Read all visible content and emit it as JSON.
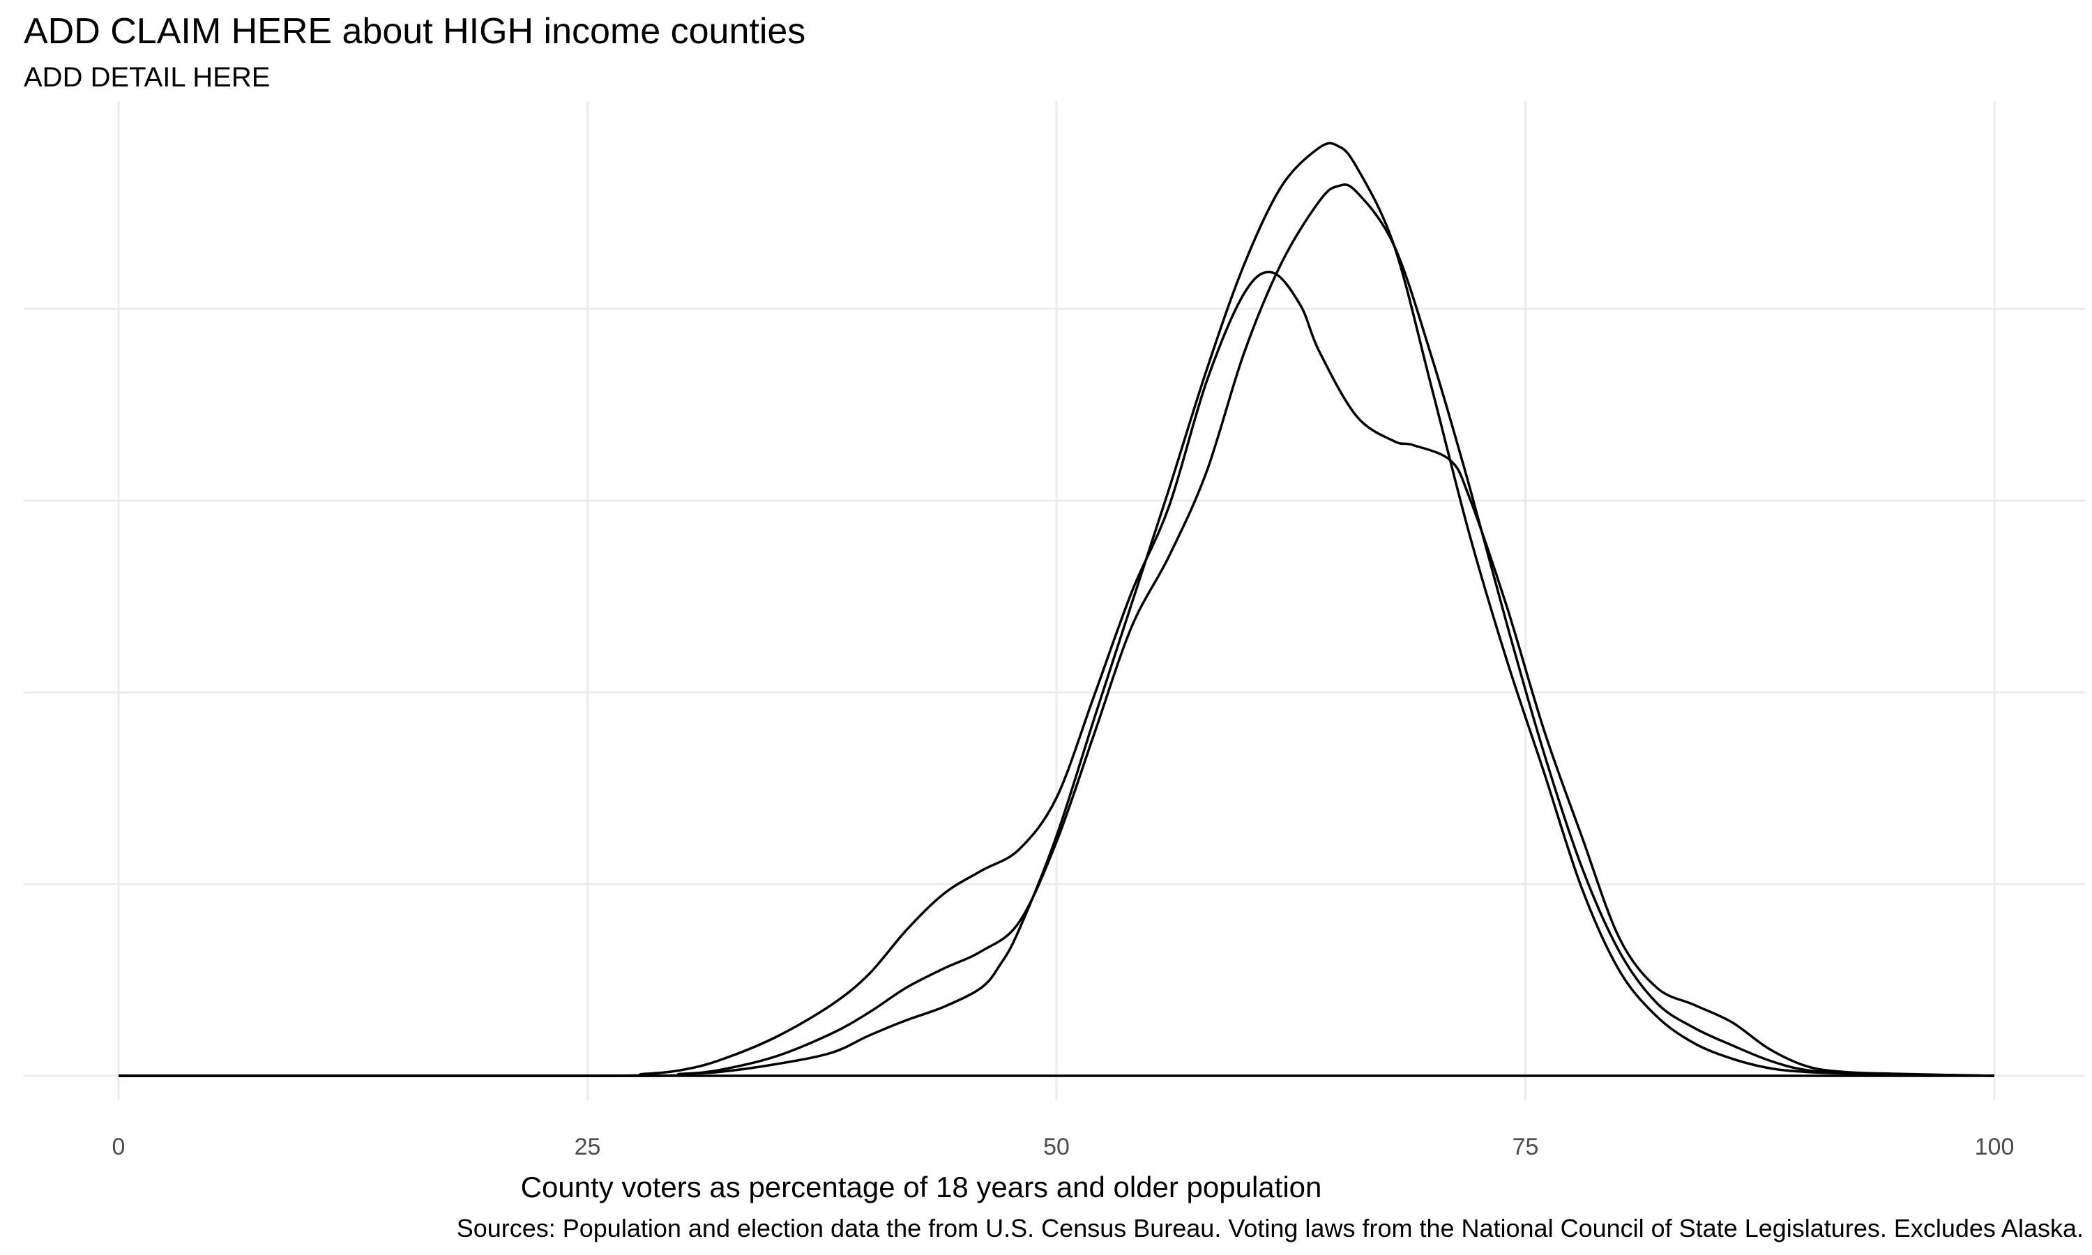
{
  "chart_data": {
    "type": "line",
    "title": "ADD CLAIM HERE about HIGH income counties",
    "subtitle": "ADD DETAIL HERE",
    "xlabel": "County voters as percentage of 18 years and older population",
    "ylabel": "",
    "caption": "Sources: Population and election data the from U.S. Census Bureau. Voting laws from the National Council of State Legislatures. Excludes Alaska.",
    "xlim": [
      0,
      100
    ],
    "ylim": [
      0,
      0.0485
    ],
    "x_ticks": [
      0,
      25,
      50,
      75,
      100
    ],
    "x_tick_labels": [
      "0",
      "25",
      "50",
      "75",
      "100"
    ],
    "y_gridlines": [
      0,
      0.01,
      0.02,
      0.03,
      0.04
    ],
    "y_tick_labels_visible": false,
    "grid": true,
    "legend": "none",
    "line_color": "#000000",
    "grid_color": "#ebebeb",
    "series": [
      {
        "x": [
          0,
          25,
          28,
          30,
          32,
          35,
          38,
          40,
          42,
          44,
          46,
          48,
          50,
          52,
          54,
          56,
          58,
          60,
          61.5,
          63,
          64,
          66,
          68,
          69,
          71,
          72,
          74,
          76,
          78,
          80,
          82,
          84,
          86,
          88,
          90,
          92,
          95,
          100
        ],
        "y": [
          0,
          0,
          0.0001,
          0.0003,
          0.0008,
          0.002,
          0.0037,
          0.0053,
          0.0076,
          0.0095,
          0.0107,
          0.0118,
          0.0145,
          0.0198,
          0.0252,
          0.0297,
          0.0362,
          0.0408,
          0.0419,
          0.0402,
          0.0378,
          0.0344,
          0.0331,
          0.0329,
          0.0321,
          0.0302,
          0.0245,
          0.018,
          0.0125,
          0.0072,
          0.0046,
          0.0037,
          0.0028,
          0.0014,
          0.0005,
          0.0002,
          0.0001,
          0
        ]
      },
      {
        "x": [
          0,
          27,
          30,
          32,
          35,
          38,
          40,
          42,
          44,
          46,
          48,
          50,
          52,
          54,
          56,
          58,
          60,
          62,
          64,
          65,
          66,
          68,
          70,
          72,
          74,
          76,
          78,
          80,
          82,
          84,
          86,
          88,
          90,
          93,
          100
        ],
        "y": [
          0,
          0,
          0.0001,
          0.0003,
          0.001,
          0.0022,
          0.0033,
          0.0046,
          0.0056,
          0.0065,
          0.008,
          0.0122,
          0.0178,
          0.0234,
          0.0271,
          0.0315,
          0.0377,
          0.0424,
          0.0456,
          0.0464,
          0.0461,
          0.0433,
          0.0375,
          0.0308,
          0.0236,
          0.0168,
          0.0109,
          0.0065,
          0.0038,
          0.0025,
          0.0016,
          0.0008,
          0.0003,
          0.0001,
          0
        ]
      },
      {
        "x": [
          0,
          28,
          30,
          32,
          35,
          38,
          40,
          42,
          44,
          46,
          47,
          48,
          50,
          52,
          54,
          56,
          58,
          60,
          62,
          64,
          65,
          66,
          68,
          70,
          72,
          74,
          76,
          78,
          80,
          82,
          84,
          86,
          88,
          90,
          93,
          100
        ],
        "y": [
          0,
          0,
          0.0001,
          0.0002,
          0.0006,
          0.0012,
          0.0021,
          0.0029,
          0.0036,
          0.0046,
          0.0058,
          0.0076,
          0.0125,
          0.0186,
          0.0246,
          0.0306,
          0.0368,
          0.0423,
          0.0464,
          0.0484,
          0.0485,
          0.0474,
          0.0433,
          0.0359,
          0.0283,
          0.0217,
          0.0158,
          0.0098,
          0.0055,
          0.0031,
          0.0017,
          0.0009,
          0.0004,
          0.0002,
          0.0001,
          0
        ]
      }
    ]
  }
}
